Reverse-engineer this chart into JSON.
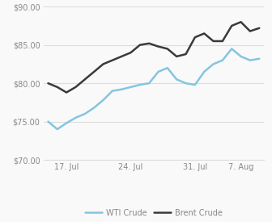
{
  "wti": [
    75.0,
    74.0,
    74.8,
    75.5,
    76.0,
    76.8,
    77.8,
    79.0,
    79.2,
    79.5,
    79.8,
    80.0,
    81.5,
    82.0,
    80.5,
    80.0,
    79.8,
    81.5,
    82.5,
    83.0,
    84.5,
    83.5,
    83.0,
    83.2
  ],
  "brent": [
    80.0,
    79.5,
    78.8,
    79.5,
    80.5,
    81.5,
    82.5,
    83.0,
    83.5,
    84.0,
    85.0,
    85.2,
    84.8,
    84.5,
    83.5,
    83.8,
    86.0,
    86.5,
    85.5,
    85.5,
    87.5,
    88.0,
    86.8,
    87.2
  ],
  "x_ticks": [
    2,
    9,
    16,
    21
  ],
  "x_tick_labels": [
    "17. Jul",
    "24. Jul",
    "31. Jul",
    "7. Aug"
  ],
  "y_min": 70.0,
  "y_max": 90.0,
  "y_ticks": [
    70.0,
    75.0,
    80.0,
    85.0,
    90.0
  ],
  "wti_color": "#85c5e0",
  "brent_color": "#3a3a3a",
  "background_color": "#f9f9f9",
  "grid_color": "#dddddd",
  "wti_label": "WTI Crude",
  "brent_label": "Brent Crude",
  "linewidth": 1.8,
  "tick_color": "#888888",
  "tick_fontsize": 7.0
}
